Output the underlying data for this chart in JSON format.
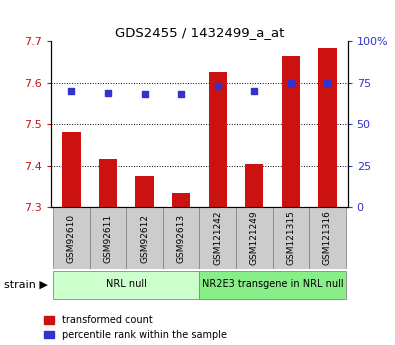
{
  "title": "GDS2455 / 1432499_a_at",
  "samples": [
    "GSM92610",
    "GSM92611",
    "GSM92612",
    "GSM92613",
    "GSM121242",
    "GSM121249",
    "GSM121315",
    "GSM121316"
  ],
  "transformed_counts": [
    7.48,
    7.415,
    7.375,
    7.335,
    7.625,
    7.405,
    7.665,
    7.685
  ],
  "percentile_ranks": [
    70,
    69,
    68,
    68,
    73,
    70,
    75,
    75
  ],
  "ylim_left": [
    7.3,
    7.7
  ],
  "ylim_right": [
    0,
    100
  ],
  "yticks_left": [
    7.3,
    7.4,
    7.5,
    7.6,
    7.7
  ],
  "yticks_right": [
    0,
    25,
    50,
    75,
    100
  ],
  "ytick_labels_right": [
    "0",
    "25",
    "50",
    "75",
    "100%"
  ],
  "grid_values": [
    7.4,
    7.5,
    7.6
  ],
  "bar_color": "#cc1111",
  "dot_color": "#3333cc",
  "bar_bottom": 7.3,
  "bar_width": 0.5,
  "xlim": [
    -0.55,
    7.55
  ],
  "strain_groups": [
    {
      "label": "NRL null",
      "start": 0,
      "end": 3,
      "color": "#ccffcc"
    },
    {
      "label": "NR2E3 transgene in NRL null",
      "start": 4,
      "end": 7,
      "color": "#88ee88"
    }
  ],
  "legend_items": [
    {
      "color": "#cc1111",
      "label": "transformed count"
    },
    {
      "color": "#3333cc",
      "label": "percentile rank within the sample"
    }
  ],
  "sample_box_color": "#cccccc",
  "sample_box_edge": "#888888",
  "fig_width": 3.95,
  "fig_height": 3.45,
  "dpi": 100
}
